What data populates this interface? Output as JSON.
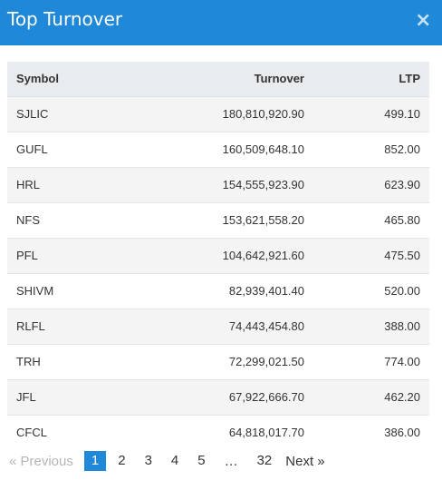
{
  "header": {
    "title": "Top Turnover",
    "close_label": "×"
  },
  "table": {
    "columns": [
      "Symbol",
      "Turnover",
      "LTP"
    ],
    "rows": [
      [
        "SJLIC",
        "180,810,920.90",
        "499.10"
      ],
      [
        "GUFL",
        "160,509,648.10",
        "852.00"
      ],
      [
        "HRL",
        "154,555,923.90",
        "623.90"
      ],
      [
        "NFS",
        "153,621,558.20",
        "465.80"
      ],
      [
        "PFL",
        "104,642,921.60",
        "475.50"
      ],
      [
        "SHIVM",
        "82,939,401.40",
        "520.00"
      ],
      [
        "RLFL",
        "74,443,454.80",
        "388.00"
      ],
      [
        "TRH",
        "72,299,021.50",
        "774.00"
      ],
      [
        "JFL",
        "67,922,666.70",
        "462.20"
      ],
      [
        "CFCL",
        "64,818,017.70",
        "386.00"
      ]
    ]
  },
  "pagination": {
    "previous_label": "« Previous",
    "pages": [
      "1",
      "2",
      "3",
      "4",
      "5"
    ],
    "ellipsis": "…",
    "last_page": "32",
    "next_label": "Next »",
    "active_page": "1",
    "active_color": "#1f88d8"
  }
}
